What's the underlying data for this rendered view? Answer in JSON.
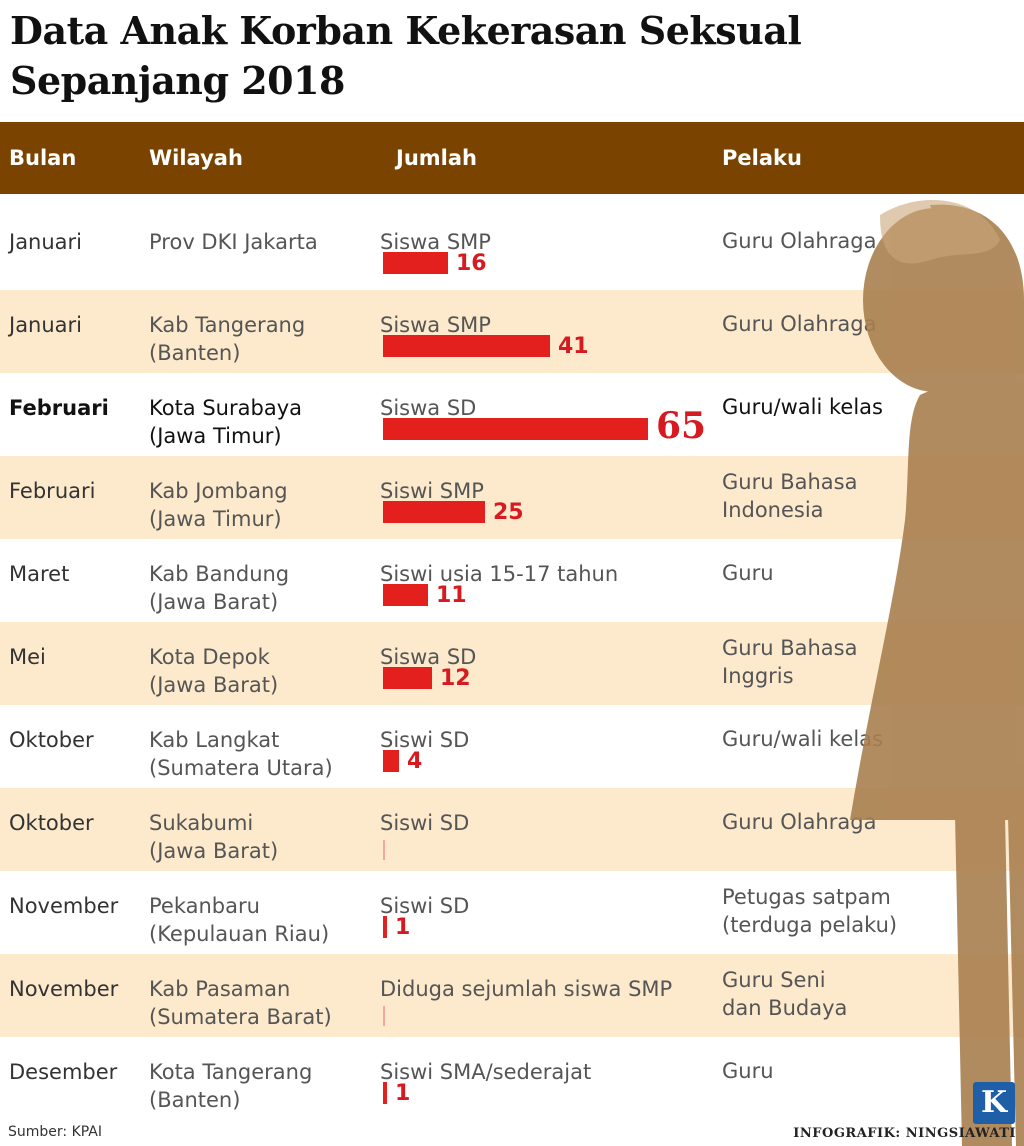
{
  "title": "Data Anak Korban Kekerasan Seksual Sepanjang 2018",
  "headers": [
    "Bulan",
    "Wilayah",
    "Jumlah",
    "Pelaku"
  ],
  "rows": [
    {
      "month": "Januari",
      "region": "Prov DKI Jakarta",
      "victims": "Siswa SMP",
      "count": 16,
      "count_label": "16",
      "perpetrator": "Guru Olahraga"
    },
    {
      "month": "Januari",
      "region": "Kab Tangerang\n(Banten)",
      "victims": "Siswa SMP",
      "count": 41,
      "count_label": "41",
      "perpetrator": "Guru Olahraga"
    },
    {
      "month": "Februari",
      "region": "Kota Surabaya\n(Jawa Timur)",
      "victims": "Siswa SD",
      "count": 65,
      "count_label": "65",
      "perpetrator": "Guru/wali kelas"
    },
    {
      "month": "Februari",
      "region": "Kab Jombang\n(Jawa Timur)",
      "victims": "Siswi SMP",
      "count": 25,
      "count_label": "25",
      "perpetrator": "Guru Bahasa\nIndonesia"
    },
    {
      "month": "Maret",
      "region": "Kab Bandung\n(Jawa Barat)",
      "victims": "Siswi usia 15-17 tahun",
      "count": 11,
      "count_label": "11",
      "perpetrator": "Guru"
    },
    {
      "month": "Mei",
      "region": "Kota Depok\n(Jawa Barat)",
      "victims": "Siswa SD",
      "count": 12,
      "count_label": "12",
      "perpetrator": "Guru Bahasa\nInggris"
    },
    {
      "month": "Oktober",
      "region": "Kab Langkat\n(Sumatera Utara)",
      "victims": "Siswi SD",
      "count": 4,
      "count_label": "4",
      "perpetrator": "Guru/wali kelas"
    },
    {
      "month": "Oktober",
      "region": "Sukabumi\n(Jawa Barat)",
      "victims": "Siswi SD",
      "count": null,
      "count_label": "",
      "perpetrator": "Guru Olahraga"
    },
    {
      "month": "November",
      "region": "Pekanbaru\n(Kepulauan Riau)",
      "victims": "Siswi SD",
      "count": 1,
      "count_label": "1",
      "perpetrator": "Petugas satpam\n(terduga pelaku)"
    },
    {
      "month": "November",
      "region": "Kab Pasaman\n(Sumatera Barat)",
      "victims": "Diduga sejumlah siswa SMP",
      "count": null,
      "count_label": "",
      "perpetrator": "Guru Seni\ndan Budaya"
    },
    {
      "month": "Desember",
      "region": "Kota Tangerang\n(Banten)",
      "victims": "Siswi SMA/sederajat",
      "count": 1,
      "count_label": "1",
      "perpetrator": "Guru"
    }
  ],
  "chart_data": {
    "type": "bar",
    "title": "Data Anak Korban Kekerasan Seksual Sepanjang 2018",
    "categories": [
      "Januari",
      "Januari",
      "Februari",
      "Februari",
      "Maret",
      "Mei",
      "Oktober",
      "Oktober",
      "November",
      "November",
      "Desember"
    ],
    "values": [
      16,
      41,
      65,
      25,
      11,
      12,
      4,
      null,
      1,
      null,
      1
    ],
    "xlabel": "Jumlah",
    "ylabel": "Bulan"
  },
  "source": "Sumber: KPAI",
  "credit": "INFOGRAFIK: NINGSIAWATI",
  "logo_letter": "K",
  "colors": {
    "header_bg": "#7a4400",
    "row_shade": "#fdeacc",
    "bar": "#e3201e",
    "value_text": "#d71920",
    "silhouette": "#a97f4f",
    "logo_bg": "#1e5fa8"
  }
}
